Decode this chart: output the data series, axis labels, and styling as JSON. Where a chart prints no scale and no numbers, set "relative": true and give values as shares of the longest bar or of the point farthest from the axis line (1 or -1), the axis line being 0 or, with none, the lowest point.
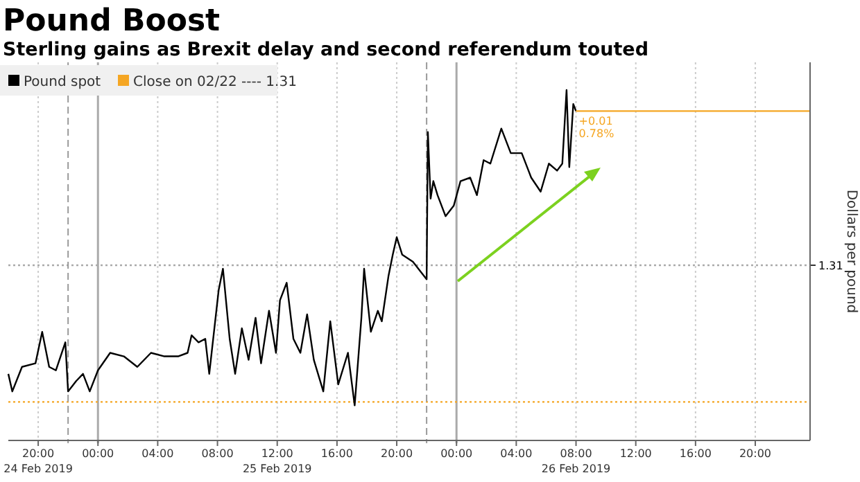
{
  "chart_data": {
    "type": "line",
    "title": "Pound Boost",
    "subtitle": "Sterling gains as Brexit delay and second referendum touted",
    "ylabel": "Dollars per pound",
    "grid": "x",
    "legend": "top left",
    "xlim": [
      "2019-02-24T18:00",
      "2019-02-26T23:40"
    ],
    "xticks": [
      {
        "value": "2019-02-24T20:00",
        "label": "20:00\n24 Feb 2019"
      },
      {
        "value": "2019-02-25T00:00",
        "label": "00:00"
      },
      {
        "value": "2019-02-25T04:00",
        "label": "04:00"
      },
      {
        "value": "2019-02-25T08:00",
        "label": "08:00"
      },
      {
        "value": "2019-02-25T12:00",
        "label": "12:00\n25 Feb 2019"
      },
      {
        "value": "2019-02-25T16:00",
        "label": "16:00"
      },
      {
        "value": "2019-02-25T20:00",
        "label": "20:00"
      },
      {
        "value": "2019-02-26T00:00",
        "label": "00:00"
      },
      {
        "value": "2019-02-26T04:00",
        "label": "04:00"
      },
      {
        "value": "2019-02-26T08:00",
        "label": "08:00\n26 Feb 2019"
      },
      {
        "value": "2019-02-26T12:00",
        "label": "12:00"
      },
      {
        "value": "2019-02-26T16:00",
        "label": "16:00"
      },
      {
        "value": "2019-02-26T20:00",
        "label": "20:00"
      }
    ],
    "relative": true,
    "series": [
      {
        "name": "Pound spot",
        "color": "#000000",
        "x": [
          "2019-02-24T18:00",
          "2019-02-24T18:16",
          "2019-02-24T18:55",
          "2019-02-24T19:49",
          "2019-02-24T20:16",
          "2019-02-24T20:44",
          "2019-02-24T21:11",
          "2019-02-24T21:49",
          "2019-02-24T22:00",
          "2019-02-24T22:33",
          "2019-02-24T23:00",
          "2019-02-24T23:27",
          "2019-02-25T00:00",
          "2019-02-25T00:49",
          "2019-02-25T01:44",
          "2019-02-25T02:38",
          "2019-02-25T03:33",
          "2019-02-25T04:27",
          "2019-02-25T05:22",
          "2019-02-25T06:00",
          "2019-02-25T06:16",
          "2019-02-25T06:44",
          "2019-02-25T07:11",
          "2019-02-25T07:27",
          "2019-02-25T08:05",
          "2019-02-25T08:22",
          "2019-02-25T08:49",
          "2019-02-25T09:11",
          "2019-02-25T09:38",
          "2019-02-25T10:05",
          "2019-02-25T10:33",
          "2019-02-25T10:55",
          "2019-02-25T11:27",
          "2019-02-25T11:55",
          "2019-02-25T12:11",
          "2019-02-25T12:38",
          "2019-02-25T13:05",
          "2019-02-25T13:33",
          "2019-02-25T14:00",
          "2019-02-25T14:27",
          "2019-02-25T15:05",
          "2019-02-25T15:33",
          "2019-02-25T16:05",
          "2019-02-25T16:44",
          "2019-02-25T17:11",
          "2019-02-25T17:38",
          "2019-02-25T17:49",
          "2019-02-25T18:16",
          "2019-02-25T18:44",
          "2019-02-25T19:00",
          "2019-02-25T19:27",
          "2019-02-25T19:44",
          "2019-02-25T20:00",
          "2019-02-25T20:22",
          "2019-02-25T21:05",
          "2019-02-25T21:49",
          "2019-02-25T22:00",
          "2019-02-25T22:05",
          "2019-02-25T22:16",
          "2019-02-25T22:27",
          "2019-02-25T22:44",
          "2019-02-25T23:16",
          "2019-02-25T23:49",
          "2019-02-26T00:16",
          "2019-02-26T00:55",
          "2019-02-26T01:22",
          "2019-02-26T01:49",
          "2019-02-26T02:16",
          "2019-02-26T03:00",
          "2019-02-26T03:38",
          "2019-02-26T04:22",
          "2019-02-26T05:00",
          "2019-02-26T05:38",
          "2019-02-26T06:11",
          "2019-02-26T06:44",
          "2019-02-26T07:05",
          "2019-02-26T07:22",
          "2019-02-26T07:33",
          "2019-02-26T07:49",
          "2019-02-26T08:00"
        ],
        "values": [
          0.19,
          0.14,
          0.21,
          0.22,
          0.31,
          0.21,
          0.2,
          0.28,
          0.14,
          0.17,
          0.19,
          0.14,
          0.2,
          0.25,
          0.24,
          0.21,
          0.25,
          0.24,
          0.24,
          0.25,
          0.3,
          0.28,
          0.29,
          0.19,
          0.43,
          0.49,
          0.29,
          0.19,
          0.32,
          0.23,
          0.35,
          0.22,
          0.37,
          0.25,
          0.4,
          0.45,
          0.29,
          0.25,
          0.36,
          0.23,
          0.14,
          0.34,
          0.16,
          0.25,
          0.1,
          0.35,
          0.49,
          0.31,
          0.37,
          0.34,
          0.47,
          0.53,
          0.58,
          0.53,
          0.51,
          0.47,
          0.46,
          0.88,
          0.69,
          0.74,
          0.7,
          0.64,
          0.67,
          0.74,
          0.75,
          0.7,
          0.8,
          0.79,
          0.89,
          0.82,
          0.82,
          0.75,
          0.71,
          0.79,
          0.77,
          0.79,
          1,
          0.78,
          0.96,
          0.94
        ]
      },
      {
        "type": "line",
        "color": "#f5a623",
        "x": [
          "2019-02-26T08:00",
          "2019-02-26T23:40"
        ],
        "values": [
          0.94,
          0.94
        ]
      }
    ],
    "ref_lines": [
      {
        "axis": "y",
        "value": 0.11,
        "label": "Close on 02/22 ---- 1.31",
        "color": "#f5a623",
        "line_style": "dotted"
      },
      {
        "axis": "y",
        "value": 0.5,
        "color": "#aaaaaa",
        "line_style": "dotted"
      },
      {
        "axis": "x",
        "value": "2019-02-24T22:00",
        "color": "#999999",
        "line_style": "dashed"
      },
      {
        "axis": "x",
        "value": "2019-02-25T22:00",
        "color": "#999999",
        "line_style": "dashed"
      }
    ],
    "annotations": [
      {
        "text": "+0.01",
        "x": "2019-02-26T08:00",
        "y": 0.94
      },
      {
        "text": "0.78%",
        "x": "2019-02-26T08:00",
        "y": 0.94
      },
      "1.31"
    ]
  }
}
